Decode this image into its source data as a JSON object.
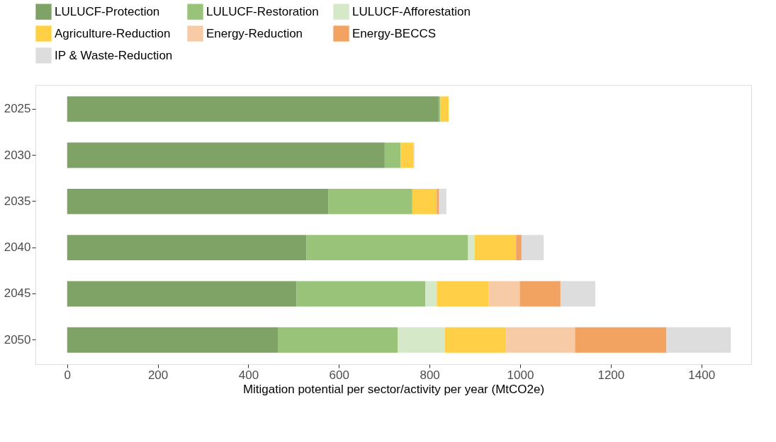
{
  "chart_data": {
    "type": "bar",
    "orientation": "horizontal",
    "stacked": true,
    "xlabel": "Mitigation potential per sector/activity per year (MtCO2e)",
    "categories": [
      "2025",
      "2030",
      "2035",
      "2040",
      "2045",
      "2050"
    ],
    "series": [
      {
        "name": "LULUCF-Protection",
        "color": "#7fa267",
        "values": [
          820,
          701,
          577,
          528,
          506,
          465
        ]
      },
      {
        "name": "LULUCF-Restoration",
        "color": "#98c379",
        "values": [
          4,
          35,
          185,
          357,
          285,
          265
        ]
      },
      {
        "name": "LULUCF-Afforestation",
        "color": "#d5e8c8",
        "values": [
          null,
          null,
          0,
          14,
          25,
          104
        ]
      },
      {
        "name": "Agriculture-Reduction",
        "color": "#ffd045",
        "values": [
          18,
          28,
          54,
          92,
          114,
          135
        ]
      },
      {
        "name": "Energy-Reduction",
        "color": "#f8cba7",
        "values": [
          0,
          0,
          0,
          0,
          69,
          152
        ]
      },
      {
        "name": "Energy-BECCS",
        "color": "#f3a361",
        "values": [
          0,
          0,
          5,
          12,
          90,
          202
        ]
      },
      {
        "name": "IP & Waste-Reduction",
        "color": "#dddddd",
        "values": [
          0,
          3,
          16,
          49,
          77,
          142
        ]
      }
    ],
    "xlim": [
      -70,
      1510
    ],
    "xticks": [
      0,
      200,
      400,
      600,
      800,
      1000,
      1200,
      1400
    ],
    "grid": false,
    "legend": "top"
  }
}
